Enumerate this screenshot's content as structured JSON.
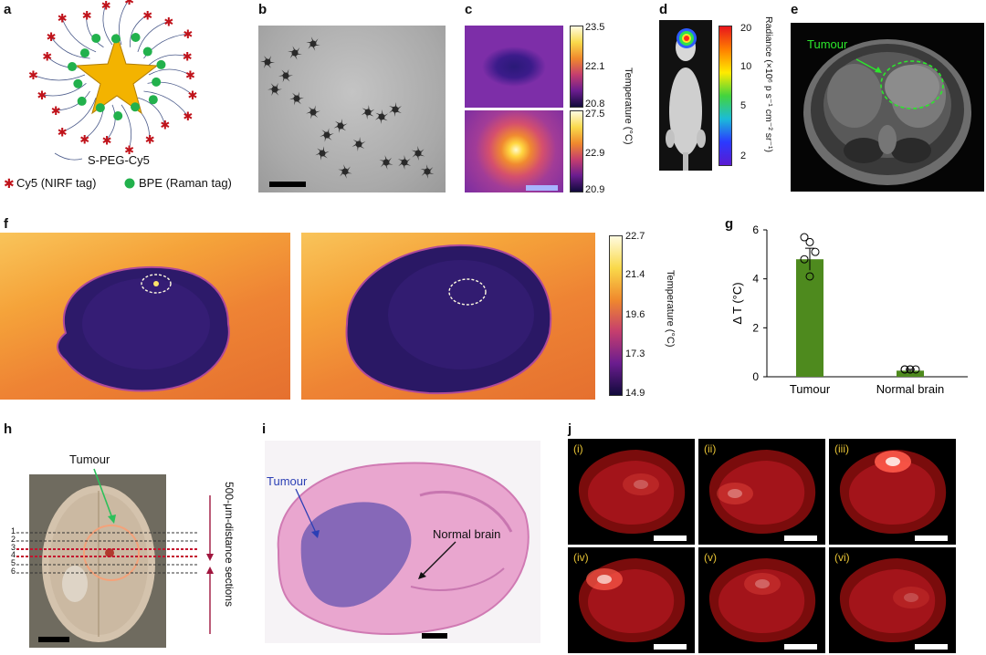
{
  "panels": {
    "a": "a",
    "b": "b",
    "c": "c",
    "d": "d",
    "e": "e",
    "f": "f",
    "g": "g",
    "h": "h",
    "i": "i",
    "j": "j"
  },
  "panel_a": {
    "peg_label": "S-PEG-Cy5",
    "legend_cy5": "Cy5 (NIRF tag)",
    "legend_bpe": "BPE (Raman tag)"
  },
  "panel_c": {
    "top_ticks": [
      "23.5",
      "22.1",
      "20.8"
    ],
    "bottom_ticks": [
      "27.5",
      "22.9",
      "20.9"
    ],
    "axis_label": "Temperature (°C)"
  },
  "panel_d": {
    "ticks": [
      "20",
      "10",
      "5",
      "2"
    ],
    "axis_label": "Radiance (×10⁶ p s⁻¹ cm⁻² sr⁻¹)"
  },
  "panel_e": {
    "tumour": "Tumour"
  },
  "panel_f": {
    "ticks": [
      "22.7",
      "21.4",
      "19.6",
      "17.3",
      "14.9"
    ],
    "axis_label": "Temperature (°C)"
  },
  "panel_h": {
    "tumour": "Tumour",
    "section_numbers": [
      "1",
      "2",
      "3",
      "4",
      "5",
      "6"
    ],
    "sections_label": "500-μm-distance sections"
  },
  "panel_i": {
    "tumour": "Tumour",
    "normal": "Normal brain"
  },
  "panel_j": {
    "sub": [
      "(i)",
      "(ii)",
      "(iii)",
      "(iv)",
      "(v)",
      "(vi)"
    ]
  },
  "chart_data": {
    "type": "bar",
    "categories": [
      "Tumour",
      "Normal brain"
    ],
    "values": [
      4.8,
      0.25
    ],
    "error": [
      0.45,
      0.05
    ],
    "points": [
      [
        5.7,
        5.5,
        5.1,
        4.8,
        4.1
      ],
      [
        0.3,
        0.3,
        0.3,
        0.3,
        0.3
      ]
    ],
    "ylabel": "Δ T (°C)",
    "ylim": [
      0,
      6
    ],
    "yticks": [
      0,
      2,
      4,
      6
    ],
    "bar_color": "#4e8a1e"
  }
}
